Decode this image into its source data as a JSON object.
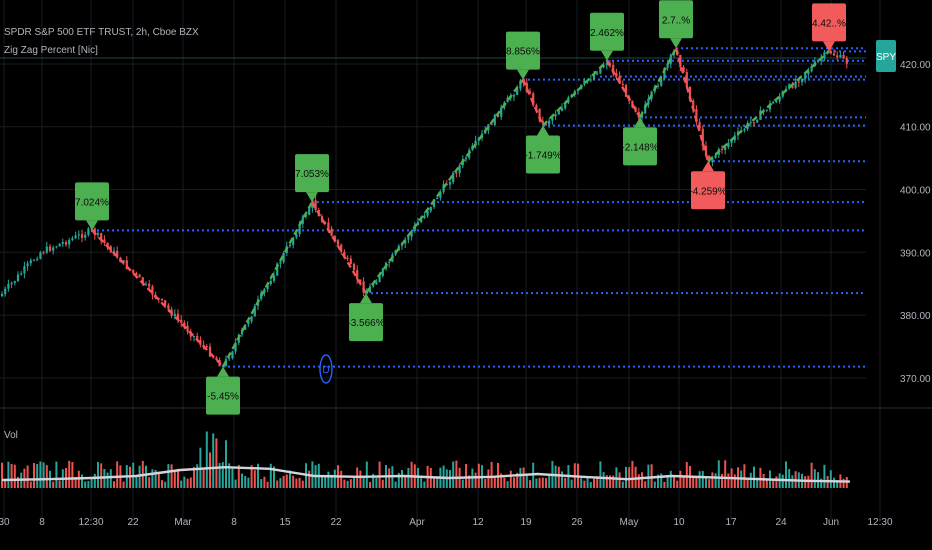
{
  "header": {
    "symbol_line": "SPDR S&P 500 ETF TRUST, 2h, Cboe BZX",
    "indicator_line": "Zig Zag Percent [Nic]"
  },
  "volume_label": "Vol",
  "price_badge": "SPY",
  "marker_badge": "D",
  "colors": {
    "up_candle": "#26a69a",
    "down_candle": "#ef5350",
    "zig_up": "#4caf50",
    "zig_down": "#f7525f",
    "pivot_line": "#2962ff",
    "label_green": "#4caf50",
    "label_red": "#f15b5b",
    "badge": "#26a69a",
    "vol_ma": "#d1d4dc"
  },
  "chart_data": {
    "type": "candlestick",
    "title": "SPDR S&P 500 ETF TRUST, 2h, Cboe BZX",
    "y_ticks": [
      370,
      380,
      390,
      400,
      410,
      420
    ],
    "ylim": [
      366,
      427
    ],
    "x_ticks": [
      "30",
      "8",
      "12:30",
      "22",
      "Mar",
      "8",
      "15",
      "22",
      "Apr",
      "12",
      "19",
      "26",
      "May",
      "10",
      "17",
      "24",
      "Jun",
      "12:30"
    ],
    "zigzag_pivots": [
      {
        "type": "high",
        "price": 393.5,
        "label": "7.024%"
      },
      {
        "type": "low",
        "price": 371.8,
        "label": "-5.45%"
      },
      {
        "type": "high",
        "price": 398.0,
        "label": "7.053%"
      },
      {
        "type": "low",
        "price": 383.5,
        "label": "-3.566%"
      },
      {
        "type": "high",
        "price": 417.5,
        "label": "8.856%"
      },
      {
        "type": "low",
        "price": 410.2,
        "label": "-1.749%"
      },
      {
        "type": "high",
        "price": 420.5,
        "label": "2.462%"
      },
      {
        "type": "low",
        "price": 411.5,
        "label": "-2.148%"
      },
      {
        "type": "high",
        "price": 422.5,
        "label": "2.7..%"
      },
      {
        "type": "low",
        "price": 404.5,
        "label": "-4.259%"
      },
      {
        "type": "high",
        "price": 422.0,
        "label": "4.42..%"
      }
    ],
    "pivot_levels": [
      422.0,
      420.5,
      418.0,
      411.5,
      410.2,
      404.5,
      398.0,
      393.5,
      383.5,
      371.8
    ],
    "volume_ma_shape": [
      0.2,
      0.22,
      0.25,
      0.3,
      0.45,
      0.52,
      0.48,
      0.3,
      0.28,
      0.3,
      0.25,
      0.28,
      0.35,
      0.28,
      0.22,
      0.3,
      0.26,
      0.22,
      0.18,
      0.16
    ]
  }
}
